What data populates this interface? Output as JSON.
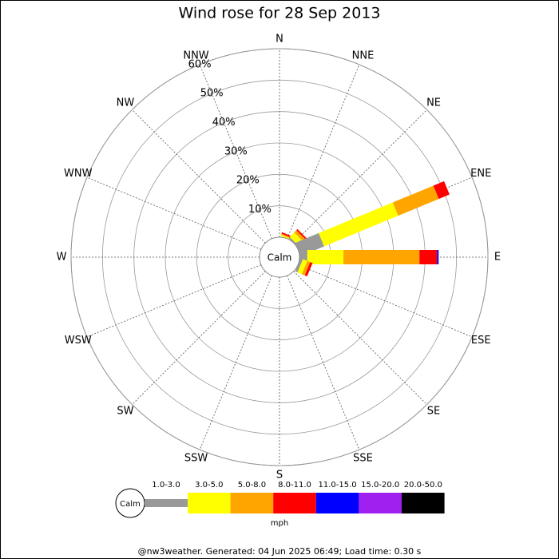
{
  "chart_data": {
    "type": "windrose",
    "title": "Wind rose for 28 Sep 2013",
    "directions": [
      "N",
      "NNE",
      "NE",
      "ENE",
      "E",
      "ESE",
      "SE",
      "SSE",
      "S",
      "SSW",
      "SW",
      "WSW",
      "W",
      "WNW",
      "NW",
      "NNW"
    ],
    "calm_label": "Calm",
    "rlim": [
      0,
      60
    ],
    "rticks": [
      {
        "value": 10,
        "label": "10%"
      },
      {
        "value": 20,
        "label": "20%"
      },
      {
        "value": 30,
        "label": "30%"
      },
      {
        "value": 40,
        "label": "40%"
      },
      {
        "value": 50,
        "label": "50%"
      },
      {
        "value": 60,
        "label": "60%"
      }
    ],
    "series": [
      {
        "name": "1.0-3.0",
        "color": "#999999",
        "values": [
          0,
          0,
          0.5,
          8.1,
          2.5,
          0.8,
          0,
          0,
          0,
          0,
          0,
          0,
          0,
          0,
          0,
          0
        ]
      },
      {
        "name": "3.0-5.0",
        "color": "#ffff00",
        "values": [
          0,
          0.5,
          2,
          25.5,
          11.5,
          1.5,
          0,
          0,
          0,
          0,
          0,
          0,
          0,
          0,
          0,
          0
        ]
      },
      {
        "name": "5.0-8.0",
        "color": "#ffa500",
        "values": [
          0,
          0.3,
          1,
          14,
          24.2,
          1,
          0,
          0,
          0,
          0,
          0,
          0,
          0,
          0,
          0,
          0
        ]
      },
      {
        "name": "8.0-11.0",
        "color": "#ff0000",
        "values": [
          0,
          0.5,
          0.5,
          3.7,
          5.6,
          0.8,
          0,
          0,
          0,
          0,
          0,
          0,
          0,
          0,
          0,
          0
        ]
      },
      {
        "name": "11.0-15.0",
        "color": "#0000ff",
        "values": [
          0,
          0,
          0,
          0,
          0.5,
          0,
          0,
          0,
          0,
          0,
          0,
          0,
          0,
          0,
          0,
          0
        ]
      },
      {
        "name": "15.0-20.0",
        "color": "#a020f0",
        "values": [
          0,
          0,
          0,
          0,
          0,
          0,
          0,
          0,
          0,
          0,
          0,
          0,
          0,
          0,
          0,
          0
        ]
      },
      {
        "name": "20.0-50.0",
        "color": "#000000",
        "values": [
          0,
          0,
          0,
          0,
          0,
          0,
          0,
          0,
          0,
          0,
          0,
          0,
          0,
          0,
          0,
          0
        ]
      }
    ],
    "units": "mph",
    "footer": "@nw3weather. Generated: 04 Jun 2025 06:49; Load time: 0.30 s"
  }
}
